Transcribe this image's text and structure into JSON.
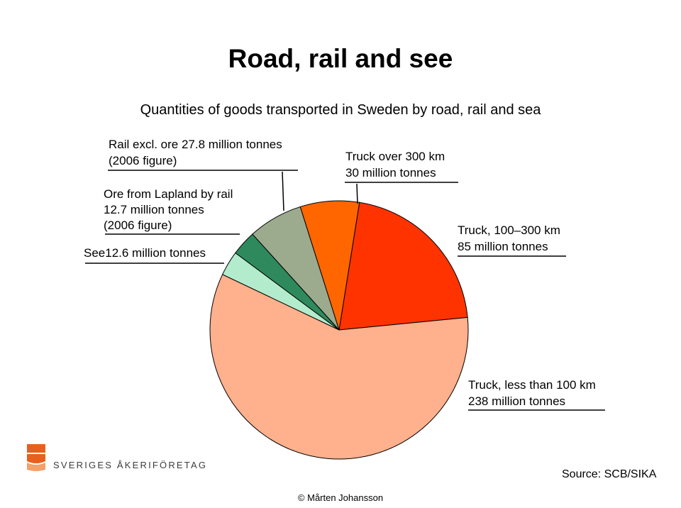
{
  "title": "Road, rail and see",
  "subtitle": "Quantities of goods transported in Sweden by road, rail and sea",
  "chart_data": {
    "type": "pie",
    "start_angle_deg": -80.9,
    "slices": [
      {
        "key": "truck_100_300",
        "value": 85,
        "color": "#ff3300"
      },
      {
        "key": "truck_lt100",
        "value": 238,
        "color": "#ffb08c"
      },
      {
        "key": "sea",
        "value": 12.6,
        "color": "#b3eccc"
      },
      {
        "key": "ore",
        "value": 12.7,
        "color": "#2e8a5c"
      },
      {
        "key": "rail",
        "value": 27.8,
        "color": "#9caa8e"
      },
      {
        "key": "truck_gt300",
        "value": 30,
        "color": "#ff6600"
      }
    ]
  },
  "labels": {
    "rail_1": "Rail excl. ore 27.8 million tonnes",
    "rail_2": "(2006 figure)",
    "ore_1": "Ore from Lapland by rail",
    "ore_2": "12.7 million tonnes",
    "ore_3": "(2006 figure)",
    "sea": "See12.6 million tonnes",
    "truck_gt300_1": "Truck over 300 km",
    "truck_gt300_2": "30 million tonnes",
    "truck_100_300_1": "Truck, 100–300 km",
    "truck_100_300_2": "85 million tonnes",
    "truck_lt100_1": "Truck, less than 100 km",
    "truck_lt100_2": "238 million tonnes"
  },
  "logo": {
    "text": "SVERIGES ÅKERIFÖRETAG",
    "icon": "akeriforetag-logo-icon",
    "color": "#e8601c"
  },
  "source": "Source: SCB/SIKA",
  "copyright": "© Mårten Johansson"
}
